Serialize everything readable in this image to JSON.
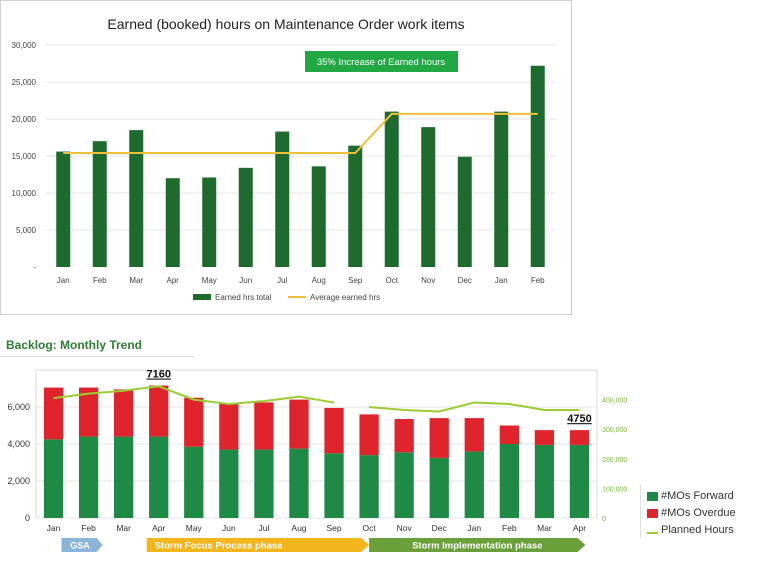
{
  "chart_data": [
    {
      "type": "bar",
      "title": "Earned (booked) hours on Maintenance Order work items",
      "categories": [
        "Jan",
        "Feb",
        "Mar",
        "Apr",
        "May",
        "Jun",
        "Jul",
        "Aug",
        "Sep",
        "Oct",
        "Nov",
        "Dec",
        "Jan",
        "Feb"
      ],
      "series": [
        {
          "name": "Earned hrs total",
          "type": "bar",
          "color": "#1e6b2e",
          "values": [
            15600,
            17000,
            18500,
            12000,
            12100,
            13400,
            18300,
            13600,
            16400,
            21000,
            18900,
            14900,
            21000,
            27200
          ]
        },
        {
          "name": "Average earned hrs",
          "type": "line",
          "color": "#f0c03a",
          "values": [
            15400,
            15400,
            15400,
            15400,
            15400,
            15400,
            15400,
            15400,
            15400,
            20700,
            20700,
            20700,
            20700,
            20700
          ]
        }
      ],
      "y_ticks": [
        "30,000",
        "25,000",
        "20,000",
        "15,000",
        "10,000",
        "5,000",
        "-"
      ],
      "ylim": [
        0,
        30000
      ],
      "annotation": "35% Increase of Earned hours",
      "annotation_color": "#21a845",
      "grid": true,
      "legend_position": "bottom"
    },
    {
      "type": "bar",
      "heading": "Backlog: Monthly Trend",
      "categories": [
        "Jan",
        "Feb",
        "Mar",
        "Apr",
        "May",
        "Jun",
        "Jul",
        "Aug",
        "Sep",
        "Oct",
        "Nov",
        "Dec",
        "Jan",
        "Feb",
        "Mar",
        "Apr"
      ],
      "series": [
        {
          "name": "#MOs Forward",
          "type": "stacked-bar",
          "color": "#1e8a45",
          "values": [
            4250,
            4400,
            4400,
            4400,
            3850,
            3700,
            3700,
            3750,
            3500,
            3400,
            3550,
            3250,
            3600,
            4000,
            3950,
            3950
          ]
        },
        {
          "name": "#MOs Overdue",
          "type": "stacked-bar",
          "color": "#e0242c",
          "values": [
            2800,
            2650,
            2550,
            2760,
            2650,
            2500,
            2550,
            2650,
            2450,
            2200,
            1800,
            2150,
            1800,
            1000,
            800,
            800
          ]
        },
        {
          "name": "Planned Hours",
          "type": "line",
          "axis": "right",
          "color": "#9acd32",
          "values": [
            405000,
            420000,
            430000,
            445000,
            400000,
            385000,
            395000,
            410000,
            390000,
            375000,
            365000,
            360000,
            390000,
            385000,
            365000,
            365000
          ]
        }
      ],
      "y_ticks_left": [
        "6,000",
        "4,000",
        "2,000",
        "0"
      ],
      "y_ticks_right": [
        "400,000",
        "300,000",
        "200,000",
        "100,000",
        "0"
      ],
      "ylim_left": [
        0,
        8000
      ],
      "ylim_right": [
        0,
        500000
      ],
      "callouts": [
        {
          "label": "7160",
          "index": 3
        },
        {
          "label": "4750",
          "index": 15
        }
      ],
      "phases": [
        {
          "label": "GSA",
          "color": "#8ab4d8"
        },
        {
          "label": "Storm Focus Process phase",
          "color": "#f2b51c"
        },
        {
          "label": "Storm Implementation phase",
          "color": "#6a9f3a"
        }
      ],
      "legend_position": "right"
    }
  ]
}
